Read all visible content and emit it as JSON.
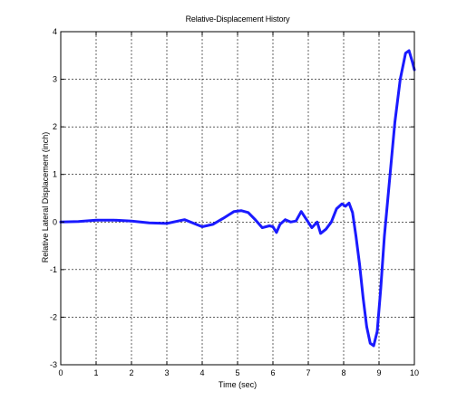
{
  "chart_data": {
    "type": "line",
    "title": "Relative-Displacement History",
    "xlabel": "Time (sec)",
    "ylabel": "Relative Lateral Displacement (inch)",
    "xlim": [
      0,
      10
    ],
    "ylim": [
      -3,
      4
    ],
    "x_ticks": [
      "0",
      "1",
      "2",
      "3",
      "4",
      "5",
      "6",
      "7",
      "8",
      "9",
      "10"
    ],
    "y_ticks": [
      "-3",
      "-2",
      "-1",
      "0",
      "1",
      "2",
      "3",
      "4"
    ],
    "grid": true,
    "series": [
      {
        "color": "#1a1aff",
        "x": [
          0,
          0.5,
          1.0,
          1.5,
          2.0,
          2.5,
          3.0,
          3.5,
          4.0,
          4.3,
          4.6,
          4.9,
          5.1,
          5.3,
          5.5,
          5.7,
          5.9,
          6.0,
          6.1,
          6.2,
          6.35,
          6.5,
          6.65,
          6.8,
          6.95,
          7.1,
          7.25,
          7.35,
          7.5,
          7.65,
          7.8,
          7.95,
          8.05,
          8.15,
          8.25,
          8.35,
          8.45,
          8.55,
          8.65,
          8.75,
          8.85,
          8.95,
          9.05,
          9.15,
          9.3,
          9.45,
          9.6,
          9.75,
          9.85,
          9.95,
          10.0
        ],
        "y": [
          0.0,
          0.01,
          0.04,
          0.04,
          0.02,
          -0.02,
          -0.03,
          0.05,
          -0.1,
          -0.05,
          0.08,
          0.22,
          0.24,
          0.2,
          0.05,
          -0.12,
          -0.08,
          -0.1,
          -0.22,
          -0.05,
          0.05,
          0.0,
          0.02,
          0.22,
          0.05,
          -0.12,
          0.0,
          -0.24,
          -0.15,
          0.0,
          0.28,
          0.38,
          0.33,
          0.4,
          0.2,
          -0.3,
          -0.9,
          -1.6,
          -2.2,
          -2.55,
          -2.6,
          -2.3,
          -1.4,
          -0.3,
          0.9,
          2.1,
          3.0,
          3.55,
          3.6,
          3.35,
          3.2
        ]
      }
    ]
  }
}
